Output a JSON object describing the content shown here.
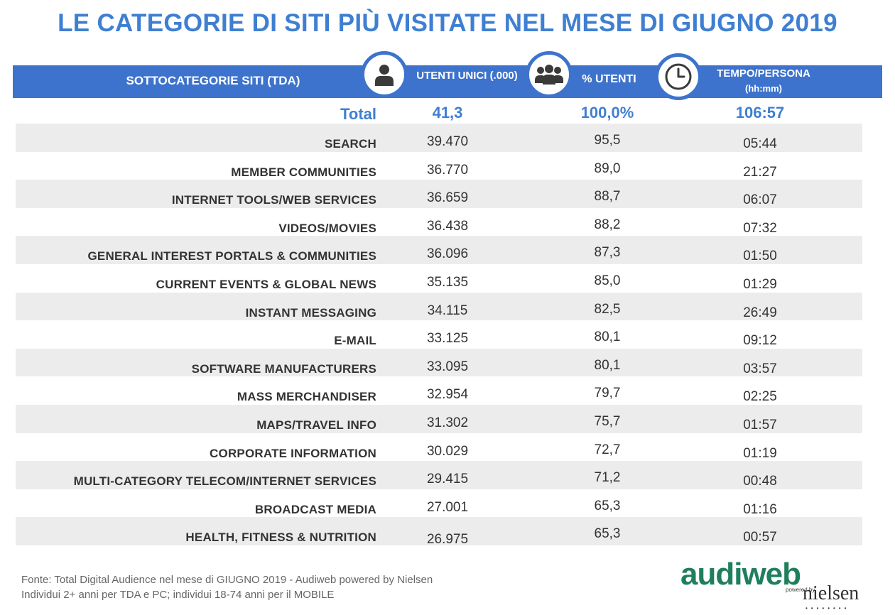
{
  "title": "LE CATEGORIE DI SITI PIÙ VISITATE NEL MESE DI GIUGNO 2019",
  "header": {
    "category": "SOTTOCATEGORIE SITI  (TDA)",
    "users": "UTENTI UNICI (.000)",
    "pct": "% UTENTI",
    "time": "TEMPO/PERSONA",
    "time_unit": "(hh:mm)",
    "accent_color": "#3d73cc"
  },
  "total": {
    "label": "Total",
    "users": "41,3",
    "pct": "100,0%",
    "time": "106:57"
  },
  "rows": [
    {
      "category": "SEARCH",
      "users": "39.470",
      "pct": "95,5",
      "time": "05:44"
    },
    {
      "category": "MEMBER COMMUNITIES",
      "users": "36.770",
      "pct": "89,0",
      "time": "21:27"
    },
    {
      "category": "INTERNET TOOLS/WEB SERVICES",
      "users": "36.659",
      "pct": "88,7",
      "time": "06:07"
    },
    {
      "category": "VIDEOS/MOVIES",
      "users": "36.438",
      "pct": "88,2",
      "time": "07:32"
    },
    {
      "category": "GENERAL INTEREST PORTALS & COMMUNITIES",
      "users": "36.096",
      "pct": "87,3",
      "time": "01:50"
    },
    {
      "category": "CURRENT EVENTS & GLOBAL NEWS",
      "users": "35.135",
      "pct": "85,0",
      "time": "01:29"
    },
    {
      "category": "INSTANT MESSAGING",
      "users": "34.115",
      "pct": "82,5",
      "time": "26:49"
    },
    {
      "category": "E-MAIL",
      "users": "33.125",
      "pct": "80,1",
      "time": "09:12"
    },
    {
      "category": "SOFTWARE MANUFACTURERS",
      "users": "33.095",
      "pct": "80,1",
      "time": "03:57"
    },
    {
      "category": "MASS MERCHANDISER",
      "users": "32.954",
      "pct": "79,7",
      "time": "02:25"
    },
    {
      "category": "MAPS/TRAVEL INFO",
      "users": "31.302",
      "pct": "75,7",
      "time": "01:57"
    },
    {
      "category": "CORPORATE INFORMATION",
      "users": "30.029",
      "pct": "72,7",
      "time": "01:19"
    },
    {
      "category": "MULTI-CATEGORY TELECOM/INTERNET SERVICES",
      "users": "29.415",
      "pct": "71,2",
      "time": "00:48"
    },
    {
      "category": "BROADCAST MEDIA",
      "users": "27.001",
      "pct": "65,3",
      "time": "01:16"
    },
    {
      "category": "HEALTH, FITNESS & NUTRITION",
      "users": "26.975",
      "pct": "65,3",
      "time": "00:57"
    }
  ],
  "source": {
    "line1": "Fonte: Total Digital Audience nel mese di GIUGNO 2019 - Audiweb powered by Nielsen",
    "line2": "Individui 2+ anni per TDA e PC; individui 18-74 anni per il MOBILE"
  },
  "logo": {
    "brand": "audiweb",
    "powered_by": "powered by",
    "partner": "nielsen"
  },
  "icons": [
    "user-icon",
    "group-icon",
    "clock-icon"
  ]
}
